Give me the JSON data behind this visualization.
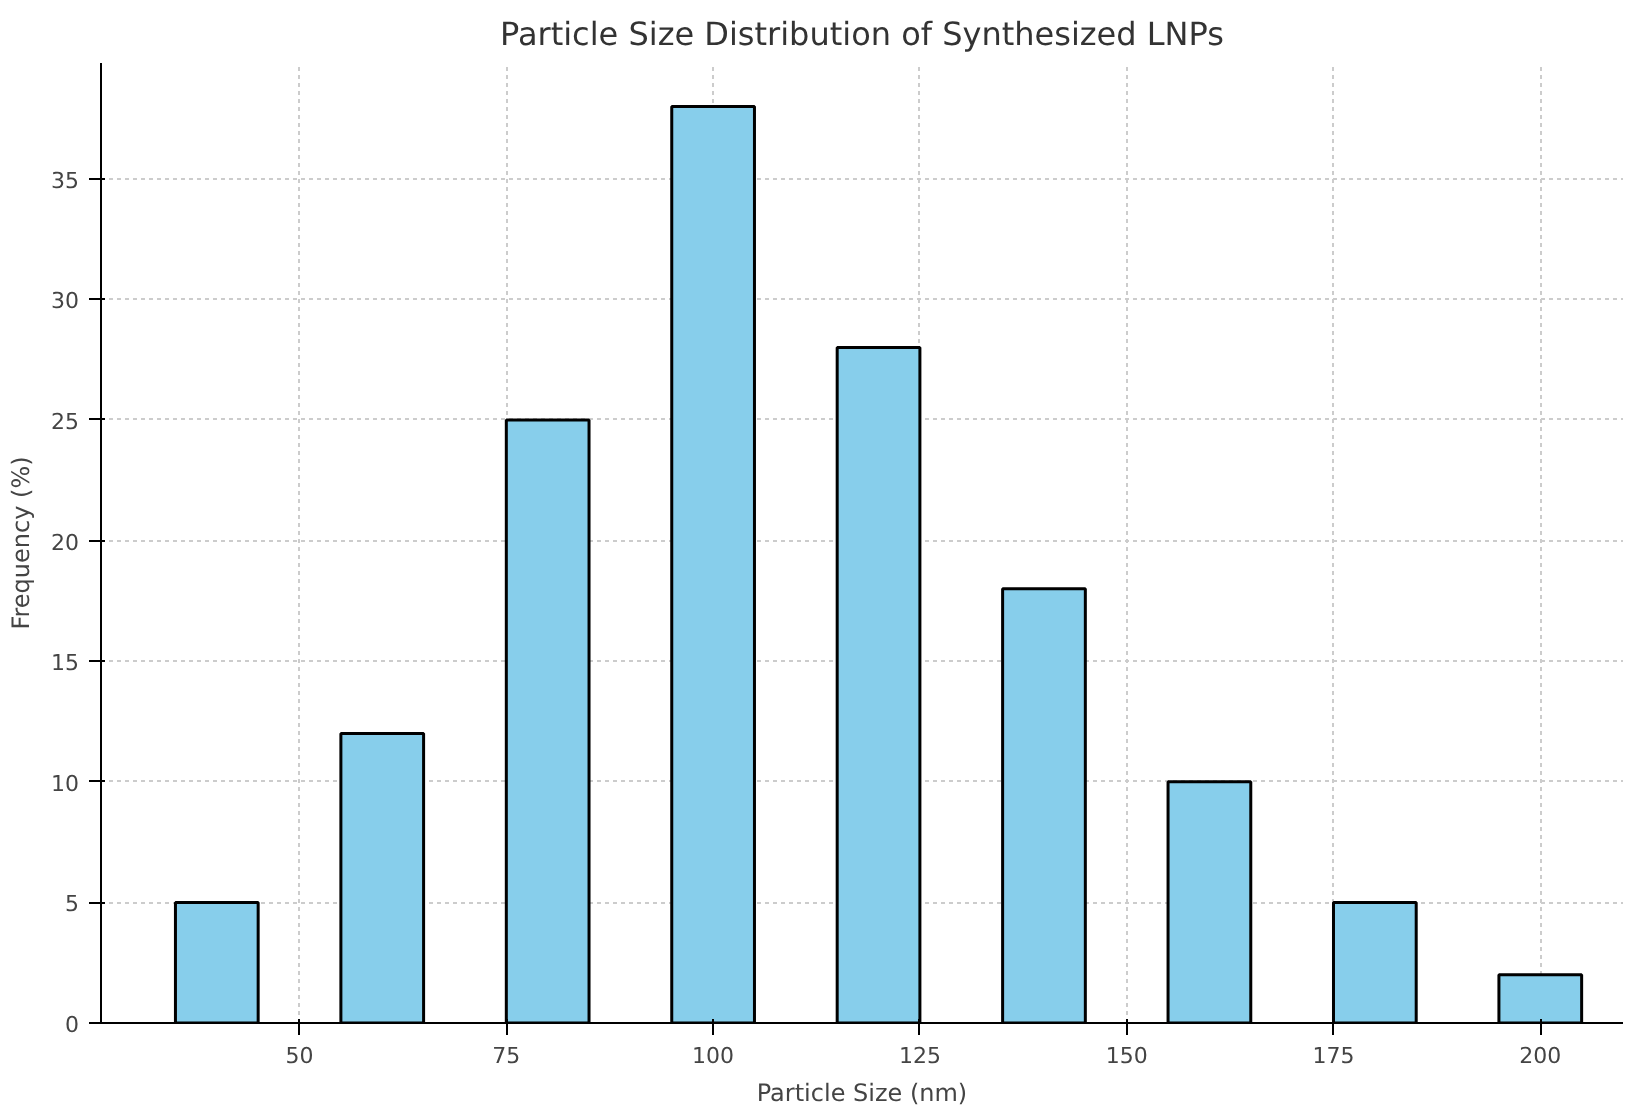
{
  "chart_data": {
    "type": "bar",
    "title": "Particle Size Distribution of Synthesized LNPs",
    "xlabel": "Particle Size (nm)",
    "ylabel": "Frequency (%)",
    "x": [
      40,
      60,
      80,
      100,
      120,
      140,
      160,
      180,
      200
    ],
    "values": [
      5,
      12,
      25,
      38,
      28,
      18,
      10,
      5,
      2
    ],
    "color": "#87ceeb",
    "xlim": [
      26,
      210
    ],
    "ylim": [
      0,
      39.8
    ],
    "xticks": [
      50,
      75,
      100,
      125,
      150,
      175,
      200
    ],
    "yticks": [
      0,
      5,
      10,
      15,
      20,
      25,
      30,
      35
    ],
    "grid": true
  }
}
